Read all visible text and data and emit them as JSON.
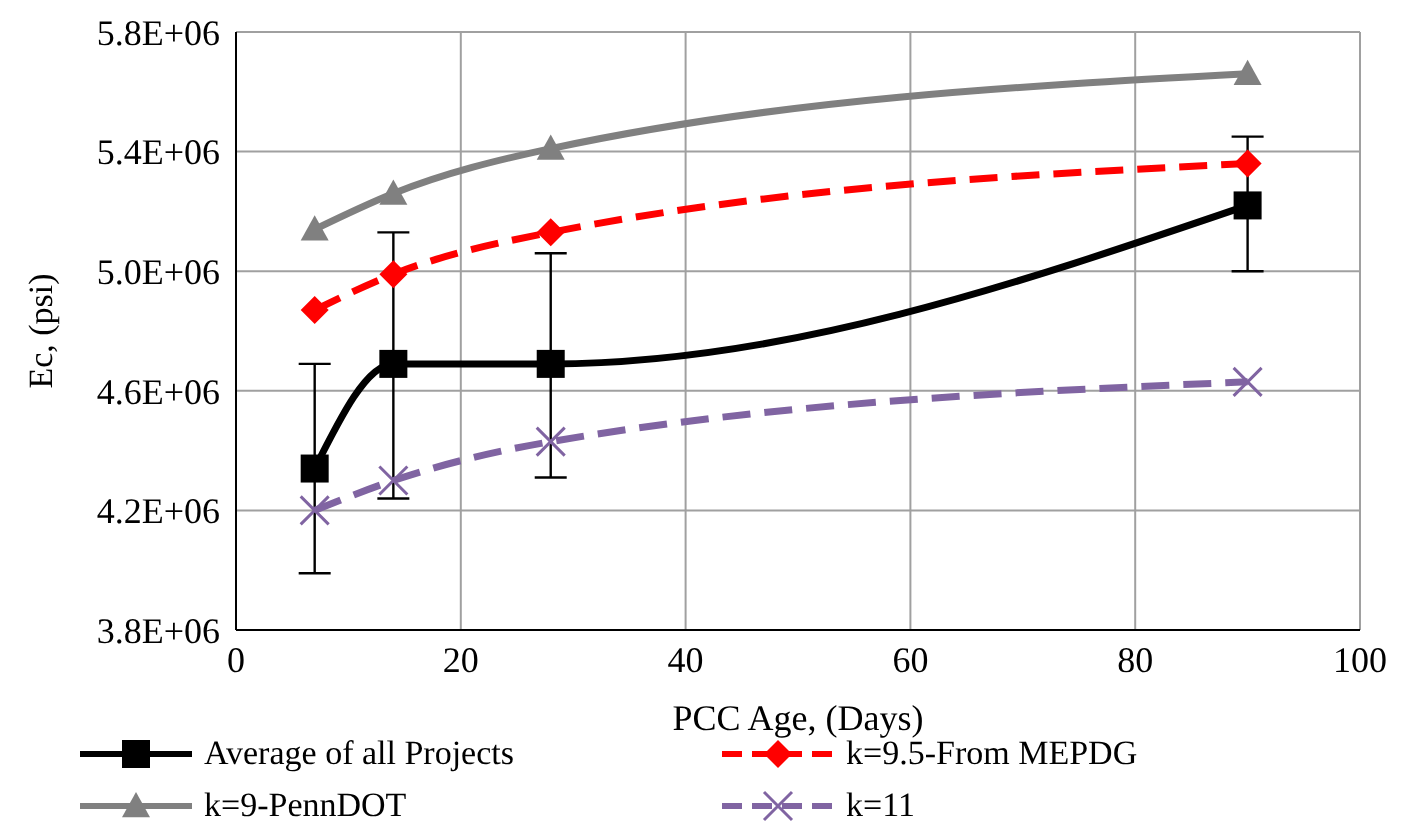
{
  "chart_data": {
    "type": "line",
    "xlabel": "PCC Age, (Days)",
    "ylabel": "Ec, (psi)",
    "xlim": [
      0,
      100
    ],
    "xticks": [
      0,
      20,
      40,
      60,
      80,
      100
    ],
    "ylim": [
      3800000,
      5800000
    ],
    "yticks": [
      {
        "value": 3800000,
        "label": "3.8E+06"
      },
      {
        "value": 4200000,
        "label": "4.2E+06"
      },
      {
        "value": 4600000,
        "label": "4.6E+06"
      },
      {
        "value": 5000000,
        "label": "5.0E+06"
      },
      {
        "value": 5400000,
        "label": "5.4E+06"
      },
      {
        "value": 5800000,
        "label": "5.8E+06"
      }
    ],
    "grid": true,
    "legend": "bottom",
    "x": [
      7,
      14,
      28,
      90
    ],
    "series": [
      {
        "name": "Average of all Projects",
        "color": "#000000",
        "marker": "square",
        "line_style": "solid",
        "values": [
          4340000,
          4690000,
          4690000,
          5220000
        ],
        "errors": [
          [
            3990000,
            4690000
          ],
          [
            4240000,
            5130000
          ],
          [
            4310000,
            5060000
          ],
          [
            5000000,
            5450000
          ]
        ]
      },
      {
        "name": "k=9.5-From MEPDG",
        "color": "#ff0000",
        "marker": "diamond",
        "line_style": "dashed",
        "values": [
          4870000,
          4990000,
          5130000,
          5360000
        ]
      },
      {
        "name": "k=9-PennDOT",
        "color": "#808080",
        "marker": "triangle",
        "line_style": "solid",
        "values": [
          5140000,
          5260000,
          5410000,
          5660000
        ]
      },
      {
        "name": "k=11",
        "color": "#8064a2",
        "marker": "cross",
        "line_style": "dashed",
        "values": [
          4200000,
          4300000,
          4430000,
          4630000
        ]
      }
    ]
  }
}
